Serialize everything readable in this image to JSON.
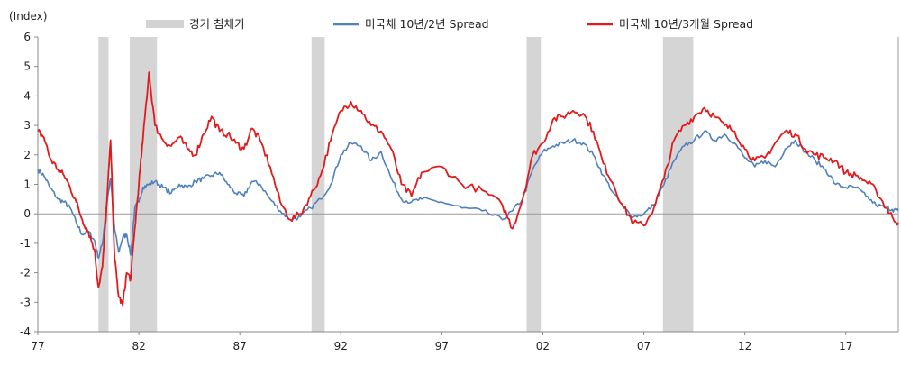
{
  "chart_data": {
    "type": "line",
    "title": "",
    "ylabel": "(Index)",
    "xlabel": "",
    "ylim": [
      -4,
      6
    ],
    "yticks": [
      -4,
      -3,
      -2,
      -1,
      0,
      1,
      2,
      3,
      4,
      5,
      6
    ],
    "xlim": [
      1977.0,
      2019.6
    ],
    "xticks": [
      {
        "label": "77",
        "year": 1977
      },
      {
        "label": "82",
        "year": 1982
      },
      {
        "label": "87",
        "year": 1987
      },
      {
        "label": "92",
        "year": 1992
      },
      {
        "label": "97",
        "year": 1997
      },
      {
        "label": "02",
        "year": 2002
      },
      {
        "label": "07",
        "year": 2007
      },
      {
        "label": "12",
        "year": 2012
      },
      {
        "label": "17",
        "year": 2017
      }
    ],
    "legend": [
      {
        "key": "recession",
        "label": "경기 침체기",
        "color": "#d3d3d3"
      },
      {
        "key": "s2y",
        "label": "미국채 10년/2년 Spread",
        "color": "#4f81bd"
      },
      {
        "key": "s3m",
        "label": "미국채 10년/3개월 Spread",
        "color": "#e31a1c"
      }
    ],
    "recessions": [
      [
        1980.0,
        1980.5
      ],
      [
        1981.55,
        1982.9
      ],
      [
        1990.55,
        1991.2
      ],
      [
        2001.2,
        2001.9
      ],
      [
        2007.95,
        2009.45
      ]
    ],
    "series": [
      {
        "name": "미국채 10년/2년 Spread",
        "color": "#4f81bd",
        "x": [
          1977.0,
          1977.3,
          1977.6,
          1978.0,
          1978.3,
          1978.6,
          1978.9,
          1979.2,
          1979.5,
          1979.8,
          1980.0,
          1980.2,
          1980.4,
          1980.6,
          1980.8,
          1981.0,
          1981.2,
          1981.4,
          1981.6,
          1981.8,
          1982.0,
          1982.2,
          1982.5,
          1982.8,
          1983.2,
          1983.6,
          1984.0,
          1984.4,
          1984.8,
          1985.2,
          1985.6,
          1986.0,
          1986.4,
          1986.8,
          1987.2,
          1987.6,
          1988.0,
          1988.5,
          1989.0,
          1989.5,
          1990.0,
          1990.5,
          1991.0,
          1991.5,
          1992.0,
          1992.5,
          1993.0,
          1993.5,
          1994.0,
          1994.5,
          1995.0,
          1995.5,
          1996.0,
          1997.0,
          1998.0,
          1999.0,
          2000.0,
          2000.5,
          2001.0,
          2001.5,
          2002.0,
          2002.5,
          2003.0,
          2003.5,
          2004.0,
          2004.5,
          2005.0,
          2005.5,
          2006.0,
          2006.5,
          2007.0,
          2007.5,
          2008.0,
          2008.5,
          2009.0,
          2009.5,
          2010.0,
          2010.5,
          2011.0,
          2011.5,
          2012.0,
          2012.5,
          2013.0,
          2013.5,
          2014.0,
          2014.5,
          2015.0,
          2015.5,
          2016.0,
          2016.5,
          2017.0,
          2017.5,
          2018.0,
          2018.5,
          2019.0,
          2019.3,
          2019.6
        ],
        "values": [
          1.5,
          1.3,
          0.9,
          0.5,
          0.4,
          0.2,
          -0.3,
          -0.7,
          -0.6,
          -0.9,
          -1.5,
          -1.0,
          0.3,
          1.2,
          -0.5,
          -1.3,
          -0.8,
          -0.7,
          -1.4,
          0.2,
          0.4,
          0.9,
          1.0,
          1.1,
          0.9,
          0.7,
          1.0,
          0.9,
          1.1,
          1.2,
          1.3,
          1.4,
          1.0,
          0.7,
          0.6,
          1.1,
          1.0,
          0.5,
          0.1,
          -0.2,
          -0.1,
          0.2,
          0.5,
          1.0,
          2.0,
          2.4,
          2.3,
          1.8,
          2.1,
          1.2,
          0.5,
          0.4,
          0.5,
          0.4,
          0.2,
          0.1,
          -0.2,
          0.1,
          0.5,
          1.5,
          2.1,
          2.3,
          2.4,
          2.5,
          2.4,
          2.0,
          1.3,
          0.7,
          0.2,
          -0.1,
          0.0,
          0.3,
          1.0,
          1.8,
          2.3,
          2.5,
          2.8,
          2.5,
          2.7,
          2.4,
          1.9,
          1.6,
          1.8,
          1.6,
          2.2,
          2.5,
          2.1,
          1.8,
          1.5,
          1.0,
          0.9,
          0.9,
          0.6,
          0.3,
          0.2,
          0.15,
          0.1
        ]
      },
      {
        "name": "미국채 10년/3개월 Spread",
        "color": "#e31a1c",
        "x": [
          1977.0,
          1977.3,
          1977.6,
          1978.0,
          1978.3,
          1978.6,
          1978.9,
          1979.2,
          1979.5,
          1979.8,
          1980.0,
          1980.2,
          1980.4,
          1980.6,
          1980.8,
          1981.0,
          1981.2,
          1981.4,
          1981.6,
          1981.8,
          1982.0,
          1982.2,
          1982.5,
          1982.8,
          1983.2,
          1983.6,
          1984.0,
          1984.4,
          1984.8,
          1985.2,
          1985.6,
          1986.0,
          1986.4,
          1986.8,
          1987.2,
          1987.6,
          1988.0,
          1988.5,
          1989.0,
          1989.5,
          1990.0,
          1990.5,
          1991.0,
          1991.5,
          1992.0,
          1992.5,
          1993.0,
          1993.5,
          1994.0,
          1994.5,
          1995.0,
          1995.5,
          1996.0,
          1997.0,
          1998.0,
          1999.0,
          2000.0,
          2000.5,
          2001.0,
          2001.5,
          2002.0,
          2002.5,
          2003.0,
          2003.5,
          2004.0,
          2004.5,
          2005.0,
          2005.5,
          2006.0,
          2006.5,
          2007.0,
          2007.5,
          2008.0,
          2008.5,
          2009.0,
          2009.5,
          2010.0,
          2010.5,
          2011.0,
          2011.5,
          2012.0,
          2012.5,
          2013.0,
          2013.5,
          2014.0,
          2014.5,
          2015.0,
          2015.5,
          2016.0,
          2016.5,
          2017.0,
          2017.5,
          2018.0,
          2018.5,
          2019.0,
          2019.3,
          2019.6
        ],
        "values": [
          2.8,
          2.6,
          1.9,
          1.5,
          1.3,
          0.9,
          0.4,
          -0.2,
          -0.6,
          -1.2,
          -2.5,
          -1.8,
          0.2,
          2.5,
          -1.5,
          -2.8,
          -3.1,
          -2.0,
          -2.2,
          -0.5,
          1.0,
          2.5,
          4.8,
          3.0,
          2.5,
          2.3,
          2.6,
          2.2,
          2.0,
          2.7,
          3.3,
          2.8,
          2.7,
          2.4,
          2.2,
          2.9,
          2.5,
          1.6,
          0.4,
          -0.2,
          0.0,
          0.6,
          1.3,
          2.5,
          3.5,
          3.8,
          3.5,
          3.0,
          2.8,
          2.2,
          1.0,
          0.6,
          1.4,
          1.6,
          1.0,
          0.8,
          0.3,
          -0.5,
          0.5,
          2.0,
          2.4,
          3.2,
          3.3,
          3.5,
          3.4,
          2.8,
          1.7,
          1.0,
          0.2,
          -0.3,
          -0.4,
          0.2,
          1.2,
          2.5,
          3.0,
          3.3,
          3.6,
          3.3,
          3.0,
          2.8,
          2.2,
          1.8,
          1.9,
          2.4,
          2.8,
          2.7,
          2.2,
          2.0,
          1.9,
          1.8,
          1.4,
          1.3,
          1.1,
          0.8,
          0.2,
          -0.1,
          -0.3
        ]
      }
    ]
  }
}
